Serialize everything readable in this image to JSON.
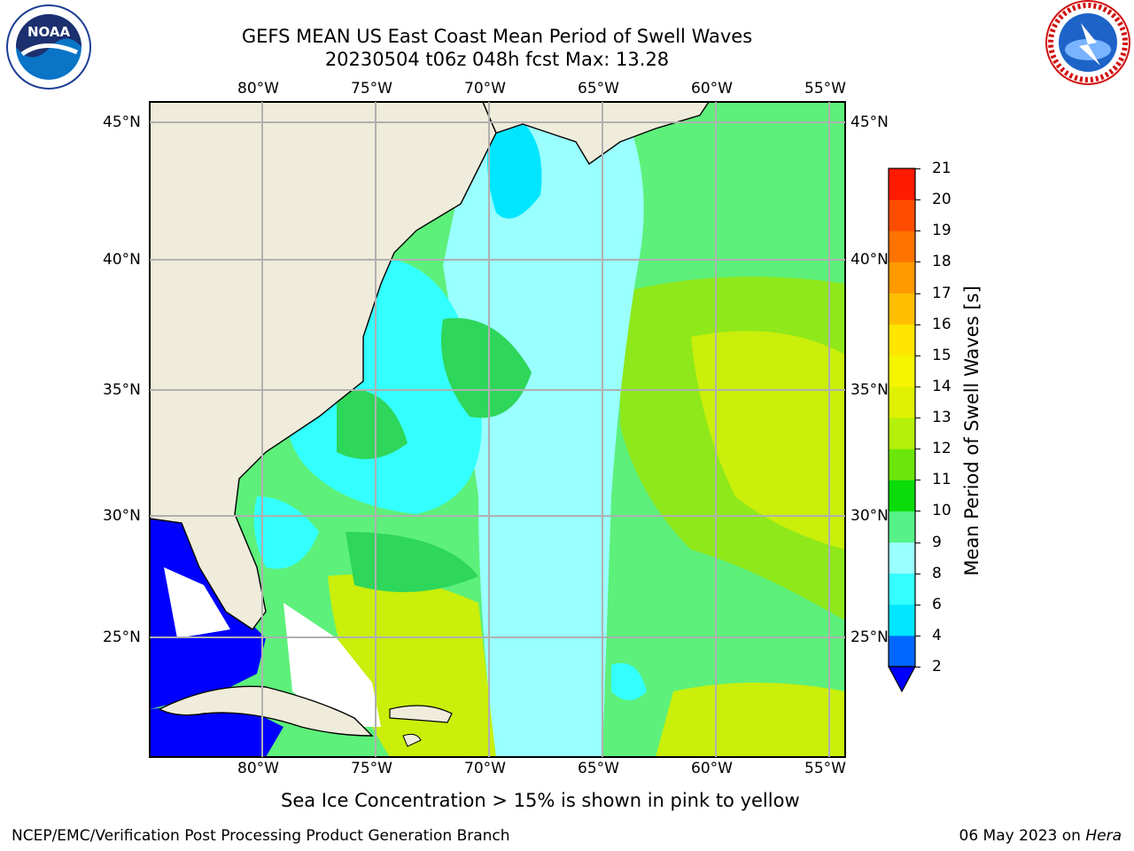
{
  "title": {
    "line1": "GEFS MEAN US East Coast Mean Period of Swell Waves",
    "line2": "20230504 t06z 048h fcst   Max: 13.28"
  },
  "map": {
    "lon_labels": [
      "80°W",
      "75°W",
      "70°W",
      "65°W",
      "60°W",
      "55°W"
    ],
    "lat_labels": [
      "45°N",
      "40°N",
      "35°N",
      "30°N",
      "25°N"
    ],
    "land_color": "#efecdb",
    "grid_color": "#b0b0b0"
  },
  "colorbar": {
    "label": "Mean Period of Swell Waves [s]",
    "ticks": [
      "2",
      "4",
      "6",
      "8",
      "9",
      "10",
      "11",
      "12",
      "13",
      "14",
      "15",
      "16",
      "17",
      "18",
      "19",
      "20",
      "21"
    ],
    "colors": [
      "#0066ff",
      "#00e6ff",
      "#33ffff",
      "#99ffff",
      "#55f288",
      "#0adc0a",
      "#6ce60a",
      "#b5f00a",
      "#dff000",
      "#f5f500",
      "#ffe600",
      "#ffbf00",
      "#ff9900",
      "#ff7300",
      "#ff4d00",
      "#ff1a00"
    ],
    "extend_color": "#0000ff"
  },
  "note": "Sea Ice Concentration > 15% is shown in pink to yellow",
  "footer": {
    "left": "NCEP/EMC/Verification Post Processing Product Generation Branch",
    "right_date": "06 May 2023 on ",
    "right_host": "Hera"
  },
  "logos": {
    "noaa_text": "NOAA",
    "nws_text": "NATIONAL WEATHER SERVICE"
  }
}
